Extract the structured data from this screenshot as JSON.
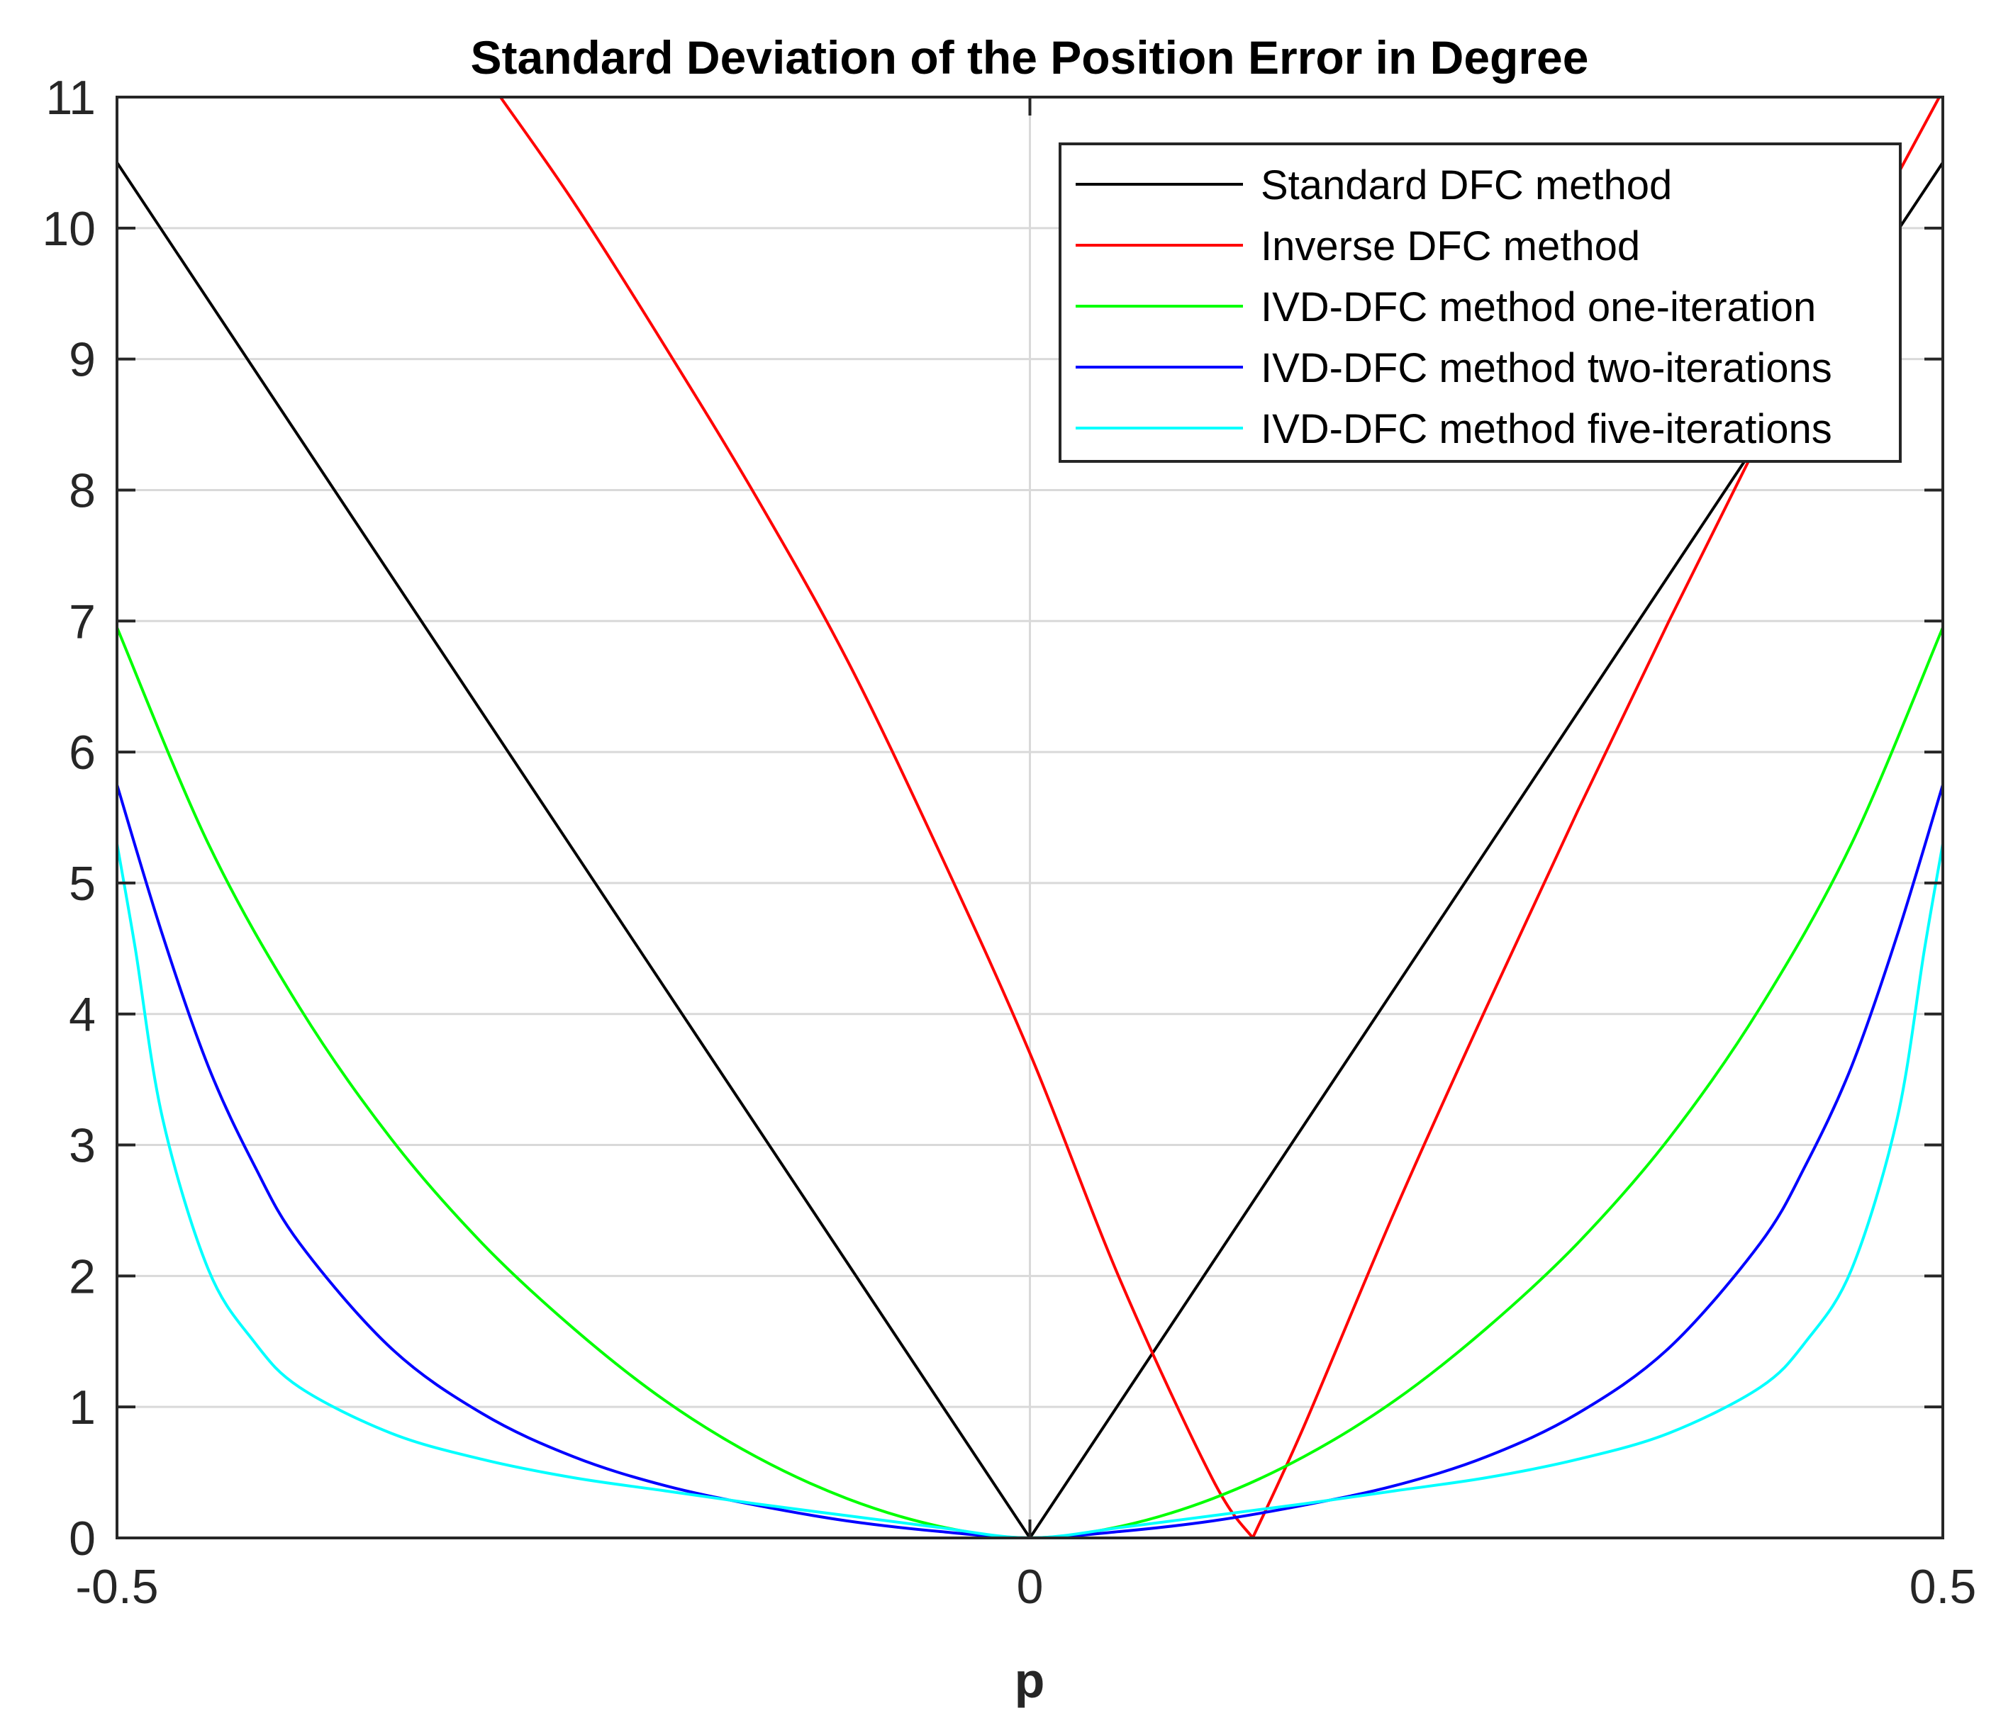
{
  "chart_data": {
    "type": "line",
    "title": "Standard Deviation of the Position Error in Degree",
    "xlabel": "p",
    "ylabel": "",
    "xlim": [
      -0.5,
      0.5
    ],
    "ylim": [
      0,
      11
    ],
    "xticks": [
      -0.5,
      0,
      0.5
    ],
    "xtick_labels": [
      "-0.5",
      "0",
      "0.5"
    ],
    "yticks": [
      0,
      1,
      2,
      3,
      4,
      5,
      6,
      7,
      8,
      9,
      10,
      11
    ],
    "ytick_labels": [
      "0",
      "1",
      "2",
      "3",
      "4",
      "5",
      "6",
      "7",
      "8",
      "9",
      "10",
      "11"
    ],
    "grid": true,
    "legend_position": "top-right",
    "series": [
      {
        "name": "Standard DFC method",
        "color": "#000000",
        "x": [
          -0.5,
          -0.4,
          -0.3,
          -0.2,
          -0.1,
          0,
          0.1,
          0.2,
          0.3,
          0.4,
          0.5
        ],
        "y": [
          10.5,
          8.4,
          6.3,
          4.2,
          2.1,
          0,
          2.1,
          4.2,
          6.3,
          8.4,
          10.5
        ]
      },
      {
        "name": "Inverse DFC method",
        "color": "#ff0000",
        "x": [
          -0.29,
          -0.25,
          -0.2,
          -0.15,
          -0.1,
          -0.05,
          0,
          0.05,
          0.1,
          0.122,
          0.15,
          0.2,
          0.25,
          0.3,
          0.35,
          0.4,
          0.45,
          0.5
        ],
        "y": [
          11.0,
          10.2,
          9.1,
          7.95,
          6.7,
          5.25,
          3.7,
          1.95,
          0.45,
          0,
          0.85,
          2.5,
          4.05,
          5.55,
          7.0,
          8.4,
          9.75,
          11.05
        ]
      },
      {
        "name": "IVD-DFC method one-iteration",
        "color": "#00ff00",
        "x": [
          -0.5,
          -0.45,
          -0.4,
          -0.35,
          -0.3,
          -0.25,
          -0.2,
          -0.15,
          -0.1,
          -0.05,
          0,
          0.05,
          0.1,
          0.15,
          0.2,
          0.25,
          0.3,
          0.35,
          0.4,
          0.45,
          0.5
        ],
        "y": [
          6.95,
          5.3,
          4.05,
          3.05,
          2.25,
          1.6,
          1.05,
          0.62,
          0.3,
          0.09,
          0,
          0.09,
          0.3,
          0.62,
          1.05,
          1.6,
          2.25,
          3.05,
          4.05,
          5.3,
          6.95
        ]
      },
      {
        "name": "IVD-DFC method two-iterations",
        "color": "#0000ff",
        "x": [
          -0.5,
          -0.475,
          -0.45,
          -0.425,
          -0.4,
          -0.35,
          -0.3,
          -0.25,
          -0.2,
          -0.15,
          -0.1,
          -0.05,
          0,
          0.05,
          0.1,
          0.15,
          0.2,
          0.25,
          0.3,
          0.35,
          0.4,
          0.425,
          0.45,
          0.475,
          0.5
        ],
        "y": [
          5.75,
          4.6,
          3.6,
          2.85,
          2.25,
          1.45,
          0.95,
          0.62,
          0.4,
          0.25,
          0.13,
          0.05,
          0,
          0.05,
          0.13,
          0.25,
          0.4,
          0.62,
          0.95,
          1.45,
          2.25,
          2.85,
          3.6,
          4.6,
          5.75
        ]
      },
      {
        "name": "IVD-DFC method five-iterations",
        "color": "#00ffff",
        "x": [
          -0.5,
          -0.49,
          -0.475,
          -0.45,
          -0.425,
          -0.4,
          -0.35,
          -0.3,
          -0.25,
          -0.2,
          -0.15,
          -0.1,
          -0.05,
          0,
          0.05,
          0.1,
          0.15,
          0.2,
          0.25,
          0.3,
          0.35,
          0.4,
          0.425,
          0.45,
          0.475,
          0.49,
          0.5
        ],
        "y": [
          5.3,
          4.5,
          3.2,
          2.05,
          1.5,
          1.15,
          0.8,
          0.6,
          0.46,
          0.36,
          0.26,
          0.17,
          0.08,
          0,
          0.08,
          0.17,
          0.26,
          0.36,
          0.46,
          0.6,
          0.8,
          1.15,
          1.5,
          2.05,
          3.2,
          4.5,
          5.3
        ]
      }
    ]
  }
}
